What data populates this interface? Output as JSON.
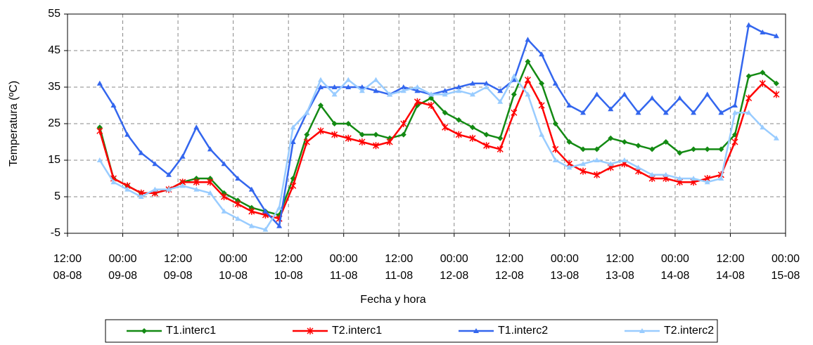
{
  "chart_data": {
    "type": "line",
    "y_label": "Temperatura (ºC)",
    "x_label": "Fecha y hora",
    "ylim": [
      -5,
      55
    ],
    "yticks": [
      -5,
      5,
      15,
      25,
      35,
      45,
      55
    ],
    "xlim": [
      "08-08 12:00",
      "15-08 00:00"
    ],
    "xticks": [
      {
        "value": "08-08 12:00",
        "label": [
          "12:00",
          "08-08"
        ]
      },
      {
        "value": "09-08 00:00",
        "label": [
          "00:00",
          "09-08"
        ]
      },
      {
        "value": "09-08 12:00",
        "label": [
          "12:00",
          "09-08"
        ]
      },
      {
        "value": "10-08 00:00",
        "label": [
          "00:00",
          "10-08"
        ]
      },
      {
        "value": "10-08 12:00",
        "label": [
          "12:00",
          "10-08"
        ]
      },
      {
        "value": "11-08 00:00",
        "label": [
          "00:00",
          "11-08"
        ]
      },
      {
        "value": "11-08 12:00",
        "label": [
          "12:00",
          "11-08"
        ]
      },
      {
        "value": "12-08 00:00",
        "label": [
          "00:00",
          "12-08"
        ]
      },
      {
        "value": "12-08 12:00",
        "label": [
          "12:00",
          "12-08"
        ]
      },
      {
        "value": "13-08 00:00",
        "label": [
          "00:00",
          "13-08"
        ]
      },
      {
        "value": "13-08 12:00",
        "label": [
          "12:00",
          "13-08"
        ]
      },
      {
        "value": "14-08 00:00",
        "label": [
          "00:00",
          "14-08"
        ]
      },
      {
        "value": "14-08 12:00",
        "label": [
          "12:00",
          "14-08"
        ]
      },
      {
        "value": "15-08 00:00",
        "label": [
          "00:00",
          "15-08"
        ]
      }
    ],
    "grid": true,
    "legend": "bottom",
    "x": [
      "08-08 19:00",
      "08-08 22:00",
      "09-08 01:00",
      "09-08 04:00",
      "09-08 07:00",
      "09-08 10:00",
      "09-08 13:00",
      "09-08 16:00",
      "09-08 19:00",
      "09-08 22:00",
      "10-08 01:00",
      "10-08 04:00",
      "10-08 07:00",
      "10-08 10:00",
      "10-08 13:00",
      "10-08 16:00",
      "10-08 19:00",
      "10-08 22:00",
      "11-08 01:00",
      "11-08 04:00",
      "11-08 07:00",
      "11-08 10:00",
      "11-08 13:00",
      "11-08 16:00",
      "11-08 19:00",
      "11-08 22:00",
      "12-08 01:00",
      "12-08 04:00",
      "12-08 07:00",
      "12-08 10:00",
      "12-08 13:00",
      "12-08 16:00",
      "12-08 19:00",
      "12-08 22:00",
      "13-08 01:00",
      "13-08 04:00",
      "13-08 07:00",
      "13-08 10:00",
      "13-08 13:00",
      "13-08 16:00",
      "13-08 19:00",
      "13-08 22:00",
      "14-08 01:00",
      "14-08 04:00",
      "14-08 07:00",
      "14-08 10:00",
      "14-08 13:00",
      "14-08 16:00",
      "14-08 19:00",
      "14-08 22:00"
    ],
    "series": [
      {
        "name": "T1.interc1",
        "color": "#138a13",
        "marker": "diamond",
        "values": [
          24,
          10,
          8,
          6,
          6,
          7,
          9,
          10,
          10,
          6,
          4,
          2,
          1,
          0,
          10,
          22,
          30,
          25,
          25,
          22,
          22,
          21,
          22,
          30,
          32,
          28,
          26,
          24,
          22,
          21,
          33,
          42,
          36,
          25,
          20,
          18,
          18,
          21,
          20,
          19,
          18,
          20,
          17,
          18,
          18,
          18,
          22,
          38,
          39,
          36
        ]
      },
      {
        "name": "T2.interc1",
        "color": "#ff0000",
        "marker": "star",
        "values": [
          23,
          10,
          8,
          6,
          6,
          7,
          9,
          9,
          9,
          5,
          3,
          1,
          0,
          -1,
          8,
          20,
          23,
          22,
          21,
          20,
          19,
          20,
          25,
          31,
          30,
          24,
          22,
          21,
          19,
          18,
          28,
          37,
          30,
          18,
          14,
          12,
          11,
          13,
          14,
          12,
          10,
          10,
          9,
          9,
          10,
          11,
          20,
          32,
          36,
          33
        ]
      },
      {
        "name": "T1.interc2",
        "color": "#3366ee",
        "marker": "triangle",
        "values": [
          36,
          30,
          22,
          17,
          14,
          11,
          16,
          24,
          18,
          14,
          10,
          7,
          1,
          -3,
          20,
          28,
          35,
          35,
          35,
          35,
          34,
          33,
          35,
          34,
          33,
          34,
          35,
          36,
          36,
          34,
          37,
          48,
          44,
          36,
          30,
          28,
          33,
          29,
          33,
          28,
          32,
          28,
          32,
          28,
          33,
          28,
          30,
          52,
          50,
          49
        ]
      },
      {
        "name": "T2.interc2",
        "color": "#99ccff",
        "marker": "triangle",
        "values": [
          15,
          9,
          7,
          5,
          7,
          7,
          8,
          7,
          6,
          1,
          -1,
          -3,
          -4,
          2,
          24,
          28,
          37,
          33,
          37,
          34,
          37,
          33,
          34,
          35,
          33,
          33,
          34,
          33,
          35,
          31,
          38,
          33,
          22,
          15,
          13,
          14,
          15,
          14,
          15,
          13,
          11,
          11,
          10,
          10,
          9,
          10,
          28,
          28,
          24,
          21
        ]
      }
    ]
  }
}
